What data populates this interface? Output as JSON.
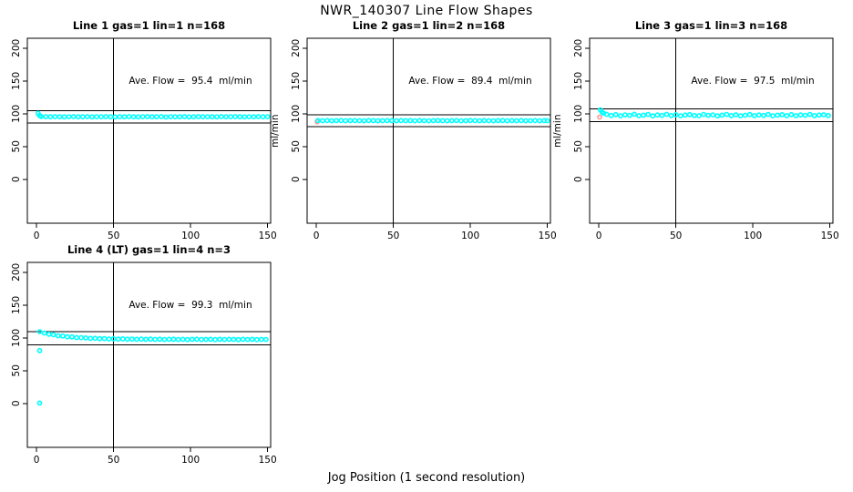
{
  "figure": {
    "title": "NWR_140307  Line Flow Shapes",
    "xlabel": "Jog Position (1 second resolution)"
  },
  "axes": {
    "ylabel": "ml/min",
    "xticks": [
      0,
      50,
      100,
      150
    ],
    "yticks": [
      0,
      50,
      100,
      150,
      200
    ],
    "xlim": [
      -6,
      152
    ],
    "ylim": [
      -67,
      215
    ],
    "grid": false,
    "legend": "none"
  },
  "colors": {
    "flow": "#00ffff",
    "start_marker": "#ff9999",
    "axis": "#000000",
    "background": "#ffffff"
  },
  "chart_data": [
    {
      "type": "scatter",
      "title": "Line 1 gas=1 lin=1 n=168",
      "annotation": "Ave. Flow =  95.4  ml/min",
      "ave_flow_ml_min": 95.4,
      "n": 168,
      "vline_x": 50,
      "hlines": [
        104.9,
        85.9
      ],
      "series": [
        {
          "name": "flow",
          "color": "#00ffff",
          "points": [
            [
              1,
              100.6
            ],
            [
              2,
              97.0
            ],
            [
              3,
              95.8
            ],
            [
              6,
              95.4
            ],
            [
              9,
              95.2
            ],
            [
              12,
              95.5
            ],
            [
              15,
              95.3
            ],
            [
              18,
              95.1
            ],
            [
              21,
              95.4
            ],
            [
              24,
              95.6
            ],
            [
              27,
              95.2
            ],
            [
              30,
              95.3
            ],
            [
              33,
              95.5
            ],
            [
              36,
              95.1
            ],
            [
              39,
              95.4
            ],
            [
              42,
              95.2
            ],
            [
              45,
              95.6
            ],
            [
              48,
              95.3
            ],
            [
              51,
              95.0
            ],
            [
              54,
              95.4
            ],
            [
              57,
              95.2
            ],
            [
              60,
              95.5
            ],
            [
              63,
              95.3
            ],
            [
              66,
              95.1
            ],
            [
              69,
              95.4
            ],
            [
              72,
              95.6
            ],
            [
              75,
              95.2
            ],
            [
              78,
              95.3
            ],
            [
              81,
              95.5
            ],
            [
              84,
              95.0
            ],
            [
              87,
              95.4
            ],
            [
              90,
              95.3
            ],
            [
              93,
              95.2
            ],
            [
              96,
              95.5
            ],
            [
              99,
              95.1
            ],
            [
              102,
              95.3
            ],
            [
              105,
              95.6
            ],
            [
              108,
              95.2
            ],
            [
              111,
              95.4
            ],
            [
              114,
              95.3
            ],
            [
              117,
              95.1
            ],
            [
              120,
              95.5
            ],
            [
              123,
              95.2
            ],
            [
              126,
              95.4
            ],
            [
              129,
              95.6
            ],
            [
              132,
              95.3
            ],
            [
              135,
              95.1
            ],
            [
              138,
              95.4
            ],
            [
              141,
              95.2
            ],
            [
              144,
              95.5
            ],
            [
              147,
              95.3
            ],
            [
              150,
              95.4
            ]
          ]
        }
      ]
    },
    {
      "type": "scatter",
      "title": "Line 2 gas=1 lin=2 n=168",
      "annotation": "Ave. Flow =  89.4  ml/min",
      "ave_flow_ml_min": 89.4,
      "n": 168,
      "vline_x": 50,
      "hlines": [
        98.3,
        80.5
      ],
      "series": [
        {
          "name": "start",
          "color": "#ff9999",
          "points": [
            [
              0.5,
              87.6
            ]
          ]
        },
        {
          "name": "flow",
          "color": "#00ffff",
          "points": [
            [
              1,
              89.5
            ],
            [
              4,
              89.3
            ],
            [
              7,
              89.6
            ],
            [
              10,
              89.2
            ],
            [
              13,
              89.4
            ],
            [
              16,
              89.5
            ],
            [
              19,
              89.1
            ],
            [
              22,
              89.4
            ],
            [
              25,
              89.6
            ],
            [
              28,
              89.3
            ],
            [
              31,
              89.2
            ],
            [
              34,
              89.5
            ],
            [
              37,
              89.4
            ],
            [
              40,
              89.1
            ],
            [
              43,
              89.3
            ],
            [
              46,
              89.6
            ],
            [
              49,
              89.4
            ],
            [
              52,
              89.2
            ],
            [
              55,
              89.5
            ],
            [
              58,
              89.3
            ],
            [
              61,
              89.4
            ],
            [
              64,
              89.1
            ],
            [
              67,
              89.6
            ],
            [
              70,
              89.3
            ],
            [
              73,
              89.2
            ],
            [
              76,
              89.4
            ],
            [
              79,
              89.5
            ],
            [
              82,
              89.3
            ],
            [
              85,
              89.1
            ],
            [
              88,
              89.4
            ],
            [
              91,
              89.6
            ],
            [
              94,
              89.2
            ],
            [
              97,
              89.3
            ],
            [
              100,
              89.5
            ],
            [
              103,
              89.4
            ],
            [
              106,
              89.2
            ],
            [
              109,
              89.6
            ],
            [
              112,
              89.3
            ],
            [
              115,
              89.1
            ],
            [
              118,
              89.4
            ],
            [
              121,
              89.5
            ],
            [
              124,
              89.2
            ],
            [
              127,
              89.4
            ],
            [
              130,
              89.3
            ],
            [
              133,
              89.6
            ],
            [
              136,
              89.1
            ],
            [
              139,
              89.3
            ],
            [
              142,
              89.5
            ],
            [
              145,
              89.2
            ],
            [
              148,
              89.4
            ],
            [
              150,
              89.3
            ]
          ]
        }
      ]
    },
    {
      "type": "scatter",
      "title": "Line 3 gas=1 lin=3 n=168",
      "annotation": "Ave. Flow =  97.5  ml/min",
      "ave_flow_ml_min": 97.5,
      "n": 168,
      "vline_x": 50,
      "hlines": [
        107.3,
        87.8
      ],
      "series": [
        {
          "name": "start",
          "color": "#ff9999",
          "points": [
            [
              0.5,
              94.8
            ]
          ]
        },
        {
          "name": "flow",
          "color": "#00ffff",
          "points": [
            [
              1,
              105.8
            ],
            [
              2,
              102.5
            ],
            [
              3,
              100.8
            ],
            [
              5,
              99.0
            ],
            [
              8,
              97.2
            ],
            [
              11,
              98.6
            ],
            [
              14,
              96.8
            ],
            [
              17,
              98.2
            ],
            [
              20,
              97.5
            ],
            [
              23,
              99.2
            ],
            [
              26,
              96.9
            ],
            [
              29,
              97.8
            ],
            [
              32,
              98.8
            ],
            [
              35,
              96.7
            ],
            [
              38,
              98.1
            ],
            [
              41,
              97.4
            ],
            [
              44,
              99.0
            ],
            [
              47,
              97.0
            ],
            [
              50,
              98.4
            ],
            [
              53,
              96.8
            ],
            [
              56,
              97.9
            ],
            [
              59,
              98.6
            ],
            [
              62,
              97.2
            ],
            [
              65,
              96.9
            ],
            [
              68,
              98.8
            ],
            [
              71,
              97.5
            ],
            [
              74,
              98.2
            ],
            [
              77,
              96.7
            ],
            [
              80,
              97.8
            ],
            [
              83,
              98.9
            ],
            [
              86,
              97.1
            ],
            [
              89,
              98.3
            ],
            [
              92,
              96.8
            ],
            [
              95,
              97.6
            ],
            [
              98,
              98.7
            ],
            [
              101,
              97.0
            ],
            [
              104,
              98.0
            ],
            [
              107,
              97.4
            ],
            [
              110,
              98.9
            ],
            [
              113,
              96.8
            ],
            [
              116,
              97.7
            ],
            [
              119,
              98.4
            ],
            [
              122,
              97.1
            ],
            [
              125,
              98.6
            ],
            [
              128,
              96.9
            ],
            [
              131,
              98.1
            ],
            [
              134,
              97.5
            ],
            [
              137,
              98.8
            ],
            [
              140,
              97.0
            ],
            [
              143,
              97.9
            ],
            [
              146,
              98.3
            ],
            [
              149,
              97.2
            ]
          ]
        }
      ]
    },
    {
      "type": "scatter",
      "title": "Line 4 (LT) gas=1 lin=4 n=3",
      "annotation": "Ave. Flow =  99.3  ml/min",
      "ave_flow_ml_min": 99.3,
      "n": 3,
      "vline_x": 50,
      "hlines": [
        109.2,
        89.4
      ],
      "series": [
        {
          "name": "flow",
          "color": "#00ffff",
          "points": [
            [
              2,
              109.3
            ],
            [
              5,
              107.3
            ],
            [
              8,
              105.5
            ],
            [
              11,
              104.7
            ],
            [
              14,
              103.1
            ],
            [
              17,
              102.8
            ],
            [
              20,
              101.5
            ],
            [
              23,
              101.3
            ],
            [
              26,
              100.4
            ],
            [
              29,
              100.3
            ],
            [
              32,
              99.9
            ],
            [
              35,
              99.2
            ],
            [
              38,
              99.3
            ],
            [
              41,
              98.7
            ],
            [
              44,
              98.9
            ],
            [
              47,
              98.3
            ],
            [
              50,
              98.6
            ],
            [
              53,
              98.1
            ],
            [
              56,
              98.4
            ],
            [
              59,
              97.9
            ],
            [
              62,
              98.2
            ],
            [
              65,
              97.8
            ],
            [
              68,
              98.1
            ],
            [
              71,
              97.7
            ],
            [
              74,
              98.0
            ],
            [
              77,
              97.6
            ],
            [
              80,
              97.9
            ],
            [
              83,
              97.5
            ],
            [
              86,
              97.8
            ],
            [
              89,
              97.9
            ],
            [
              92,
              97.5
            ],
            [
              95,
              97.8
            ],
            [
              98,
              97.4
            ],
            [
              101,
              97.7
            ],
            [
              104,
              97.9
            ],
            [
              107,
              97.5
            ],
            [
              110,
              97.6
            ],
            [
              113,
              97.8
            ],
            [
              116,
              97.4
            ],
            [
              119,
              97.7
            ],
            [
              122,
              97.5
            ],
            [
              125,
              97.8
            ],
            [
              128,
              97.6
            ],
            [
              131,
              97.3
            ],
            [
              134,
              97.7
            ],
            [
              137,
              97.5
            ],
            [
              140,
              97.8
            ],
            [
              143,
              97.4
            ],
            [
              146,
              97.6
            ],
            [
              149,
              97.5
            ]
          ]
        },
        {
          "name": "outliers",
          "color": "#00ffff",
          "points": [
            [
              2,
              80.5
            ],
            [
              2,
              0.5
            ]
          ]
        }
      ]
    }
  ]
}
